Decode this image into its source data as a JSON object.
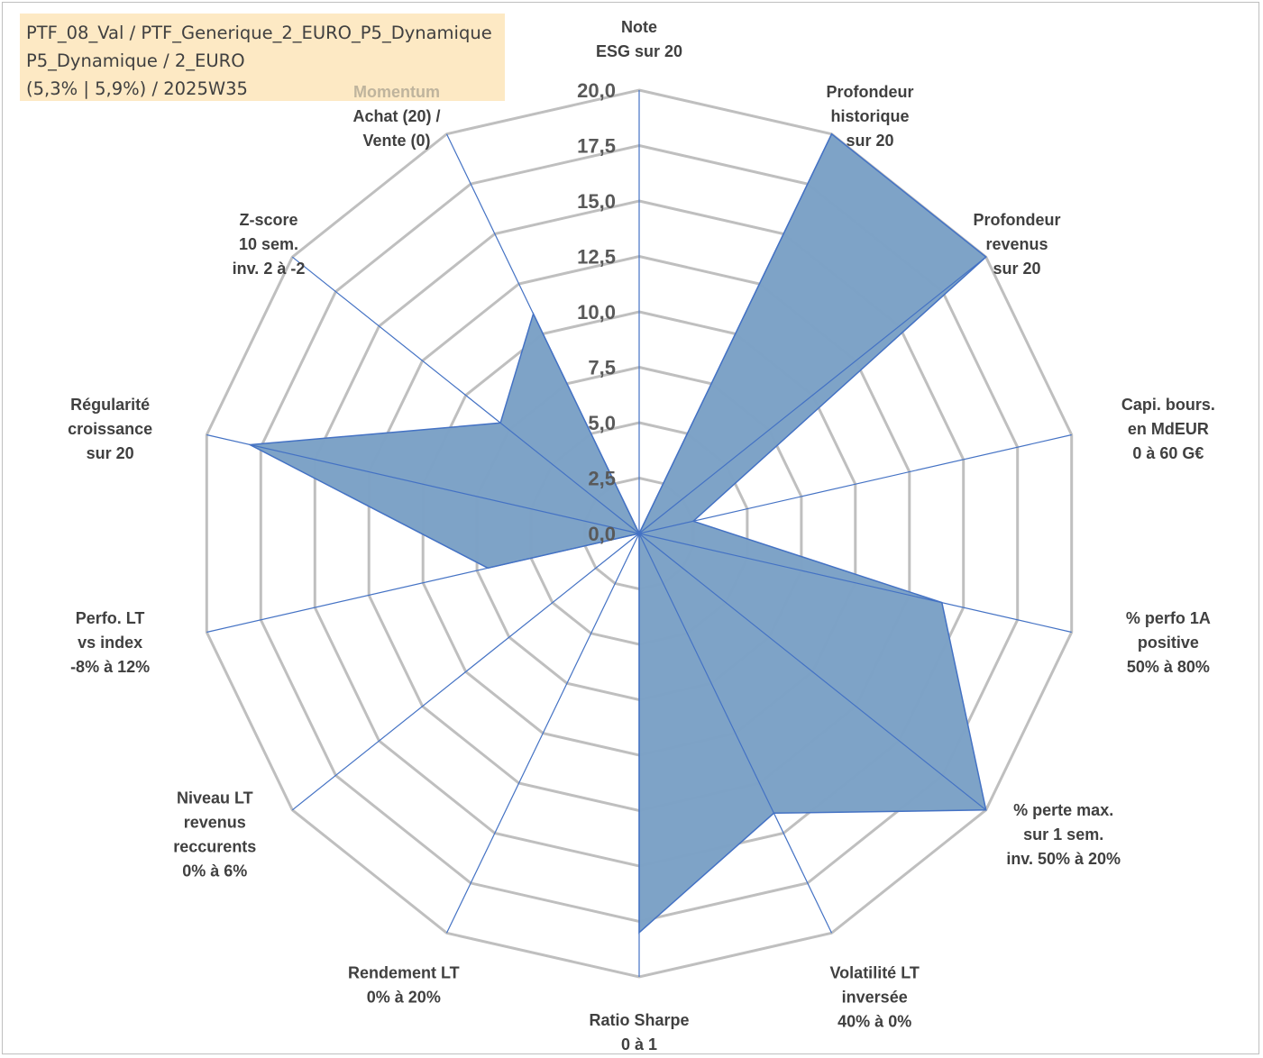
{
  "title_box": {
    "line1": "PTF_08_Val / PTF_Generique_2_EURO_P5_Dynamique",
    "line2": "P5_Dynamique / 2_EURO",
    "line3": "(5,3% | 5,9%) / 2025W35"
  },
  "colors": {
    "fill": "#7ba1c6",
    "series_line": "#4472c4",
    "grid": "#bfbfbf",
    "title_bg": "#fde9c4",
    "highlight_label": "#bfb49d"
  },
  "chart_data": {
    "type": "radar",
    "r_min": 0,
    "r_max": 20,
    "r_ticks": [
      "0,0",
      "2,5",
      "5,0",
      "7,5",
      "10,0",
      "12,5",
      "15,0",
      "17,5",
      "20,0"
    ],
    "axes": [
      {
        "lines": [
          "Note",
          "ESG sur 20"
        ]
      },
      {
        "lines": [
          "Profondeur",
          "historique",
          "sur 20"
        ]
      },
      {
        "lines": [
          "Profondeur",
          "revenus",
          "sur 20"
        ]
      },
      {
        "lines": [
          "Capi. bours.",
          "en MdEUR",
          "0 à 60 G€"
        ]
      },
      {
        "lines": [
          "% perfo 1A",
          "positive",
          "50% à 80%"
        ]
      },
      {
        "lines": [
          "% perte max.",
          "sur 1 sem.",
          "inv. 50% à 20%"
        ]
      },
      {
        "lines": [
          "Volatilité LT",
          "inversée",
          "40% à 0%"
        ]
      },
      {
        "lines": [
          "Ratio Sharpe",
          "0 à 1"
        ]
      },
      {
        "lines": [
          "Rendement LT",
          "0% à 20%"
        ]
      },
      {
        "lines": [
          "Niveau LT",
          "revenus",
          "reccurents",
          "0% à 6%"
        ]
      },
      {
        "lines": [
          "Perfo. LT",
          "vs index",
          "-8% à 12%"
        ]
      },
      {
        "lines": [
          "Régularité",
          "croissance",
          "sur 20"
        ]
      },
      {
        "lines": [
          "Z-score",
          "10 sem.",
          "inv. 2 à -2"
        ]
      },
      {
        "lines": [
          "Momentum",
          "Achat (20) /",
          "Vente (0)"
        ],
        "highlight_first_line": true
      }
    ],
    "series": [
      {
        "values": [
          0,
          20,
          20,
          2.5,
          14,
          20,
          14,
          18,
          0,
          0,
          7,
          18,
          8,
          11
        ]
      }
    ],
    "grid": true,
    "legend": "none"
  }
}
